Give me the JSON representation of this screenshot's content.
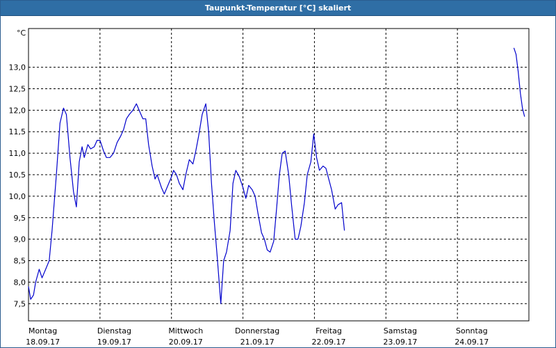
{
  "window": {
    "title": "Taupunkt-Temperatur [°C] skaliert"
  },
  "colors": {
    "title_bar": "#2f6ea5",
    "line": "#0000cc",
    "grid": "#000000"
  },
  "chart_data": {
    "type": "line",
    "title": "Taupunkt-Temperatur [°C] skaliert",
    "ylabel": "°C",
    "ylim": [
      7.1,
      13.9
    ],
    "yticks": [
      7.5,
      8.0,
      8.5,
      9.0,
      9.5,
      10.0,
      10.5,
      11.0,
      11.5,
      12.0,
      12.5,
      13.0
    ],
    "ytick_labels": [
      "7,5",
      "8,0",
      "8,5",
      "9,0",
      "9,5",
      "10,0",
      "10,5",
      "11,0",
      "11,5",
      "12,0",
      "12,5",
      "13,0"
    ],
    "xlim": [
      0,
      7
    ],
    "x_unit": "days from Montag 18.09.17 00:00",
    "days": [
      {
        "weekday": "Montag",
        "date": "18.09.17"
      },
      {
        "weekday": "Dienstag",
        "date": "19.09.17"
      },
      {
        "weekday": "Mittwoch",
        "date": "20.09.17"
      },
      {
        "weekday": "Donnerstag",
        "date": "21.09.17"
      },
      {
        "weekday": "Freitag",
        "date": "22.09.17"
      },
      {
        "weekday": "Samstag",
        "date": "23.09.17"
      },
      {
        "weekday": "Sonntag",
        "date": "24.09.17"
      }
    ],
    "grid": true,
    "series": [
      {
        "segment": 1,
        "points": [
          [
            0.0,
            7.9
          ],
          [
            0.03,
            7.6
          ],
          [
            0.07,
            7.7
          ],
          [
            0.1,
            8.0
          ],
          [
            0.15,
            8.3
          ],
          [
            0.19,
            8.1
          ],
          [
            0.24,
            8.3
          ],
          [
            0.29,
            8.5
          ],
          [
            0.33,
            9.2
          ],
          [
            0.39,
            10.5
          ],
          [
            0.44,
            11.7
          ],
          [
            0.49,
            12.05
          ],
          [
            0.53,
            11.9
          ],
          [
            0.58,
            10.9
          ],
          [
            0.63,
            10.1
          ],
          [
            0.67,
            9.75
          ],
          [
            0.71,
            10.8
          ],
          [
            0.75,
            11.15
          ],
          [
            0.78,
            10.9
          ],
          [
            0.83,
            11.2
          ],
          [
            0.87,
            11.1
          ],
          [
            0.92,
            11.15
          ],
          [
            0.96,
            11.3
          ],
          [
            1.0,
            11.3
          ],
          [
            1.05,
            11.05
          ],
          [
            1.09,
            10.9
          ],
          [
            1.14,
            10.9
          ],
          [
            1.19,
            11.0
          ],
          [
            1.24,
            11.25
          ],
          [
            1.29,
            11.4
          ],
          [
            1.33,
            11.55
          ],
          [
            1.37,
            11.8
          ],
          [
            1.41,
            11.9
          ],
          [
            1.46,
            12.0
          ],
          [
            1.51,
            12.15
          ],
          [
            1.56,
            11.95
          ],
          [
            1.6,
            11.8
          ],
          [
            1.64,
            11.8
          ],
          [
            1.68,
            11.2
          ],
          [
            1.73,
            10.7
          ],
          [
            1.77,
            10.4
          ],
          [
            1.8,
            10.5
          ],
          [
            1.86,
            10.2
          ],
          [
            1.9,
            10.05
          ],
          [
            1.95,
            10.25
          ],
          [
            2.0,
            10.45
          ],
          [
            2.03,
            10.6
          ],
          [
            2.07,
            10.5
          ],
          [
            2.11,
            10.3
          ],
          [
            2.16,
            10.15
          ],
          [
            2.2,
            10.5
          ],
          [
            2.25,
            10.85
          ],
          [
            2.3,
            10.75
          ],
          [
            2.34,
            11.05
          ],
          [
            2.38,
            11.4
          ],
          [
            2.43,
            11.9
          ],
          [
            2.48,
            12.15
          ],
          [
            2.52,
            11.5
          ],
          [
            2.56,
            10.3
          ],
          [
            2.6,
            9.4
          ],
          [
            2.64,
            8.6
          ],
          [
            2.69,
            7.5
          ],
          [
            2.73,
            8.5
          ],
          [
            2.77,
            8.7
          ],
          [
            2.82,
            9.2
          ],
          [
            2.86,
            10.3
          ],
          [
            2.9,
            10.6
          ],
          [
            2.95,
            10.45
          ],
          [
            3.0,
            10.2
          ],
          [
            3.04,
            9.95
          ],
          [
            3.08,
            10.25
          ],
          [
            3.13,
            10.15
          ],
          [
            3.17,
            10.0
          ],
          [
            3.21,
            9.6
          ],
          [
            3.26,
            9.15
          ],
          [
            3.3,
            9.0
          ],
          [
            3.34,
            8.75
          ],
          [
            3.38,
            8.7
          ],
          [
            3.43,
            8.95
          ],
          [
            3.47,
            9.7
          ],
          [
            3.51,
            10.5
          ],
          [
            3.55,
            11.0
          ],
          [
            3.59,
            11.05
          ],
          [
            3.64,
            10.5
          ],
          [
            3.68,
            9.8
          ],
          [
            3.73,
            9.0
          ],
          [
            3.77,
            9.0
          ],
          [
            3.81,
            9.3
          ],
          [
            3.86,
            9.85
          ],
          [
            3.9,
            10.5
          ],
          [
            3.95,
            10.8
          ],
          [
            3.99,
            11.45
          ],
          [
            4.03,
            10.9
          ],
          [
            4.07,
            10.6
          ],
          [
            4.12,
            10.7
          ],
          [
            4.16,
            10.65
          ],
          [
            4.2,
            10.4
          ],
          [
            4.24,
            10.15
          ],
          [
            4.29,
            9.7
          ],
          [
            4.33,
            9.8
          ],
          [
            4.38,
            9.85
          ],
          [
            4.42,
            9.2
          ]
        ]
      },
      {
        "segment": 2,
        "points": [
          [
            6.79,
            13.45
          ],
          [
            6.82,
            13.3
          ],
          [
            6.85,
            12.9
          ],
          [
            6.88,
            12.4
          ],
          [
            6.91,
            12.05
          ],
          [
            6.94,
            11.85
          ]
        ]
      }
    ]
  }
}
